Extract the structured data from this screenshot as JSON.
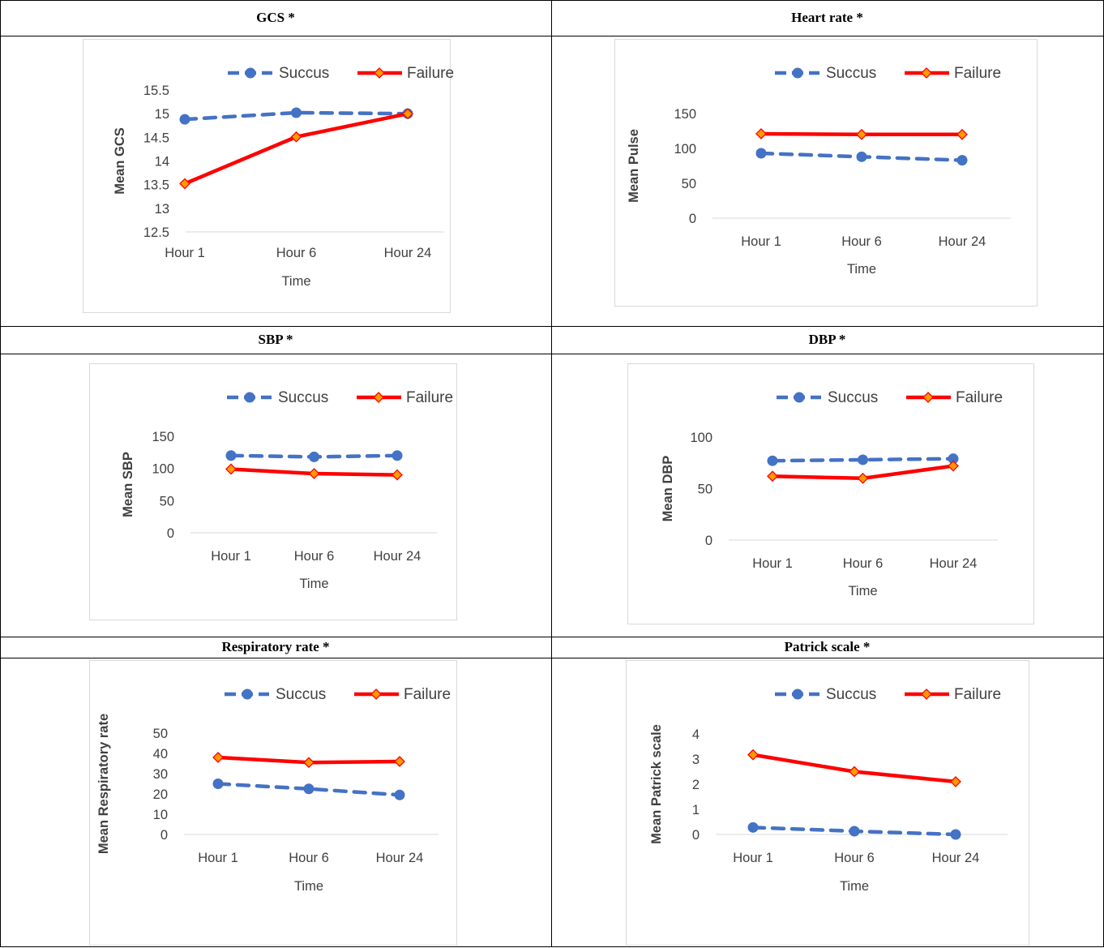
{
  "colors": {
    "succus": "#4472c4",
    "failure": "#ff0000",
    "marker_fill_failure": "#ff9900",
    "axis": "#d9d9d9",
    "text": "#404040"
  },
  "legend": {
    "series1": "Succus",
    "series2": "Failure"
  },
  "panels": [
    {
      "title": "GCS *"
    },
    {
      "title": "Heart rate *"
    },
    {
      "title": "SBP *"
    },
    {
      "title": "DBP *"
    },
    {
      "title": "Respiratory rate *"
    },
    {
      "title": "Patrick scale *"
    }
  ],
  "chart_data": [
    {
      "type": "line",
      "categories": [
        "Hour 1",
        "Hour 6",
        "Hour 24"
      ],
      "series": [
        {
          "name": "Succus",
          "values": [
            14.88,
            15.02,
            15.0
          ]
        },
        {
          "name": "Failure",
          "values": [
            13.52,
            14.51,
            15.0
          ]
        }
      ],
      "xlabel": "Time",
      "ylabel": "Mean GCS",
      "ylim": [
        12.5,
        15.5
      ],
      "ticks": [
        "12.5",
        "13",
        "13.5",
        "14",
        "14.5",
        "15",
        "15.5"
      ],
      "tick_values": [
        12.5,
        13,
        13.5,
        14,
        14.5,
        15,
        15.5
      ],
      "legend": "top"
    },
    {
      "type": "line",
      "categories": [
        "Hour 1",
        "Hour 6",
        "Hour 24"
      ],
      "series": [
        {
          "name": "Succus",
          "values": [
            93,
            88,
            83
          ]
        },
        {
          "name": "Failure",
          "values": [
            121,
            120,
            120
          ]
        }
      ],
      "xlabel": "Time",
      "ylabel": "Mean Pulse",
      "ylim": [
        0,
        150
      ],
      "ticks": [
        "0",
        "50",
        "100",
        "150"
      ],
      "tick_values": [
        0,
        50,
        100,
        150
      ],
      "legend": "top"
    },
    {
      "type": "line",
      "categories": [
        "Hour 1",
        "Hour 6",
        "Hour 24"
      ],
      "series": [
        {
          "name": "Succus",
          "values": [
            120,
            118,
            120
          ]
        },
        {
          "name": "Failure",
          "values": [
            99,
            92,
            90
          ]
        }
      ],
      "xlabel": "Time",
      "ylabel": "Mean SBP",
      "ylim": [
        0,
        150
      ],
      "ticks": [
        "0",
        "50",
        "100",
        "150"
      ],
      "tick_values": [
        0,
        50,
        100,
        150
      ],
      "legend": "top"
    },
    {
      "type": "line",
      "categories": [
        "Hour 1",
        "Hour 6",
        "Hour 24"
      ],
      "series": [
        {
          "name": "Succus",
          "values": [
            77,
            78,
            79
          ]
        },
        {
          "name": "Failure",
          "values": [
            62,
            60,
            72
          ]
        }
      ],
      "xlabel": "Time",
      "ylabel": "Mean DBP",
      "ylim": [
        0,
        100
      ],
      "ticks": [
        "0",
        "50",
        "100"
      ],
      "tick_values": [
        0,
        50,
        100
      ],
      "legend": "top"
    },
    {
      "type": "line",
      "categories": [
        "Hour 1",
        "Hour 6",
        "Hour 24"
      ],
      "series": [
        {
          "name": "Succus",
          "values": [
            25,
            22.5,
            19.5
          ]
        },
        {
          "name": "Failure",
          "values": [
            38,
            35.5,
            36
          ]
        }
      ],
      "xlabel": "Time",
      "ylabel": "Mean Respiratory rate",
      "ylim": [
        0,
        50
      ],
      "ticks": [
        "0",
        "10",
        "20",
        "30",
        "40",
        "50"
      ],
      "tick_values": [
        0,
        10,
        20,
        30,
        40,
        50
      ],
      "legend": "top"
    },
    {
      "type": "line",
      "categories": [
        "Hour 1",
        "Hour 6",
        "Hour 24"
      ],
      "series": [
        {
          "name": "Succus",
          "values": [
            0.28,
            0.13,
            0.0
          ]
        },
        {
          "name": "Failure",
          "values": [
            3.17,
            2.5,
            2.1
          ]
        }
      ],
      "xlabel": "Time",
      "ylabel": "Mean Patrick scale",
      "ylim": [
        0,
        4
      ],
      "ticks": [
        "0",
        "1",
        "2",
        "3",
        "4"
      ],
      "tick_values": [
        0,
        1,
        2,
        3,
        4
      ],
      "legend": "top"
    }
  ]
}
